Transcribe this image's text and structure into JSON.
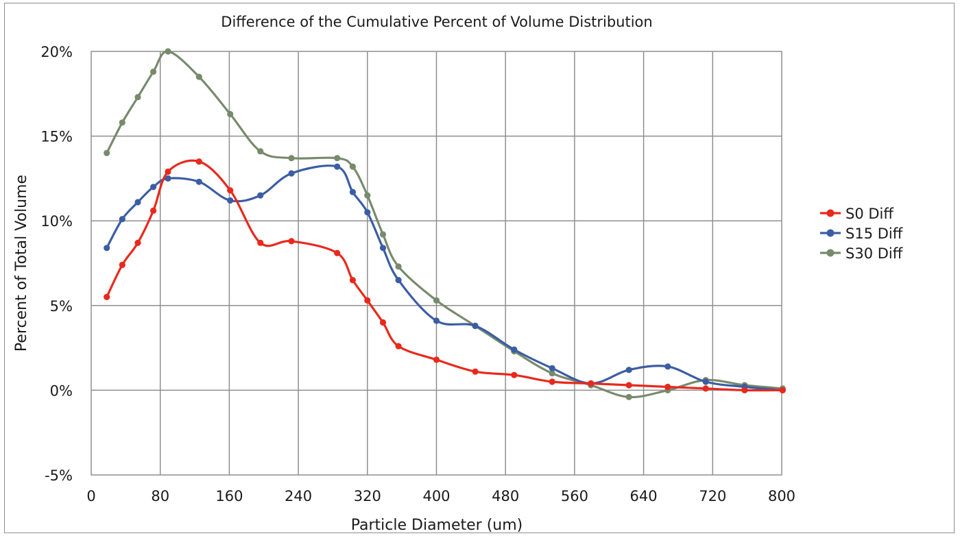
{
  "chart_data": {
    "type": "line",
    "title": "Difference of the Cumulative Percent of Volume Distribution",
    "xlabel": "Particle Diameter (um)",
    "ylabel": "Percent of Total Volume",
    "xlim": [
      0,
      800
    ],
    "ylim": [
      -5,
      20
    ],
    "x_ticks": [
      0,
      80,
      160,
      240,
      320,
      400,
      480,
      560,
      640,
      720,
      800
    ],
    "x_tick_labels": [
      "0",
      "80",
      "160",
      "240",
      "320",
      "400",
      "480",
      "560",
      "640",
      "720",
      "800"
    ],
    "y_ticks": [
      -5,
      0,
      5,
      10,
      15,
      20
    ],
    "y_tick_labels": [
      "-5%",
      "0%",
      "5%",
      "10%",
      "15%",
      "20%"
    ],
    "grid": true,
    "smooth": true,
    "legend_position": "right",
    "series": [
      {
        "name": "S0 Diff",
        "color": "#e8291c",
        "x": [
          18,
          36,
          54,
          72,
          89,
          125,
          161,
          196,
          232,
          285,
          303,
          320,
          338,
          356,
          400,
          445,
          490,
          534,
          579,
          623,
          668,
          712,
          757,
          801
        ],
        "y": [
          5.5,
          7.4,
          8.7,
          10.6,
          12.9,
          13.5,
          11.8,
          8.7,
          8.8,
          8.1,
          6.5,
          5.3,
          4.0,
          2.6,
          1.8,
          1.1,
          0.9,
          0.5,
          0.4,
          0.3,
          0.2,
          0.1,
          0.0,
          0.0
        ]
      },
      {
        "name": "S15 Diff",
        "color": "#3b5da4",
        "x": [
          18,
          36,
          54,
          72,
          89,
          125,
          161,
          196,
          232,
          285,
          303,
          320,
          338,
          356,
          400,
          445,
          490,
          534,
          579,
          623,
          668,
          712,
          757,
          801
        ],
        "y": [
          8.4,
          10.1,
          11.1,
          12.0,
          12.5,
          12.3,
          11.2,
          11.5,
          12.8,
          13.2,
          11.7,
          10.5,
          8.4,
          6.5,
          4.1,
          3.8,
          2.4,
          1.3,
          0.4,
          1.2,
          1.4,
          0.5,
          0.2,
          0.0
        ]
      },
      {
        "name": "S30 Diff",
        "color": "#788a6c",
        "x": [
          18,
          36,
          54,
          72,
          89,
          125,
          161,
          196,
          232,
          285,
          303,
          320,
          338,
          356,
          400,
          445,
          490,
          534,
          579,
          623,
          668,
          712,
          757,
          801
        ],
        "y": [
          14.0,
          15.8,
          17.3,
          18.8,
          20.0,
          18.5,
          16.3,
          14.1,
          13.7,
          13.7,
          13.2,
          11.5,
          9.2,
          7.3,
          5.3,
          3.8,
          2.3,
          1.0,
          0.3,
          -0.4,
          0.0,
          0.6,
          0.3,
          0.1
        ]
      }
    ]
  }
}
